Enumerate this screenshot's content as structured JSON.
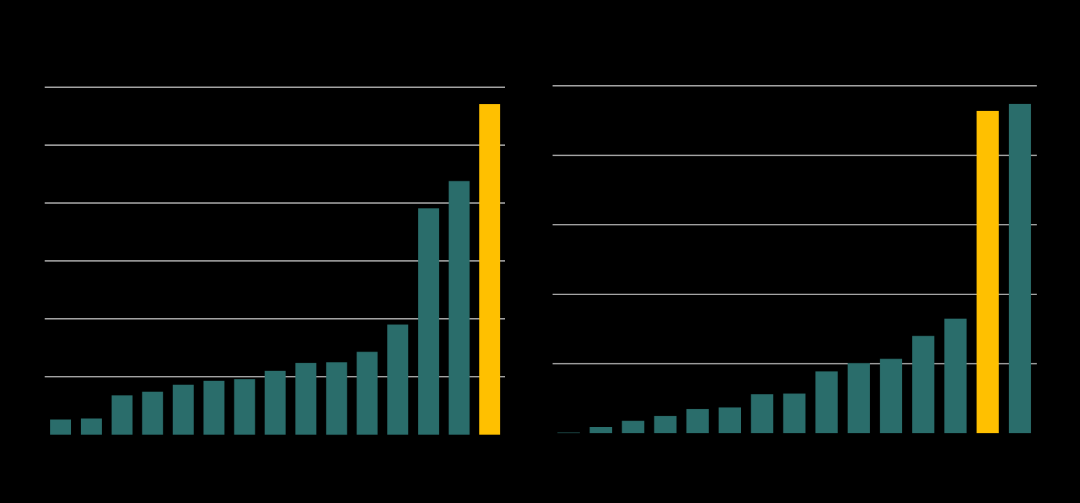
{
  "colors": {
    "background": "#000000",
    "gridline": "#d9d9d9",
    "bar": "#2a6d6b",
    "highlight": "#ffc000"
  },
  "chart_data": [
    {
      "type": "bar",
      "title": "",
      "xlabel": "",
      "ylabel": "",
      "ylim": [
        0,
        6
      ],
      "gridlines": [
        1,
        2,
        3,
        4,
        5,
        6
      ],
      "grid": true,
      "highlight_index": 14,
      "values": [
        0.26,
        0.28,
        0.68,
        0.74,
        0.86,
        0.93,
        0.96,
        1.1,
        1.24,
        1.25,
        1.43,
        1.9,
        3.91,
        4.38,
        5.71
      ]
    },
    {
      "type": "bar",
      "title": "",
      "xlabel": "",
      "ylabel": "",
      "ylim": [
        0,
        5
      ],
      "gridlines": [
        1,
        2,
        3,
        4,
        5
      ],
      "grid": true,
      "highlight_index": 13,
      "values": [
        0.01,
        0.09,
        0.18,
        0.25,
        0.35,
        0.37,
        0.56,
        0.57,
        0.89,
        1.01,
        1.07,
        1.4,
        1.65,
        4.64,
        4.74
      ]
    }
  ]
}
